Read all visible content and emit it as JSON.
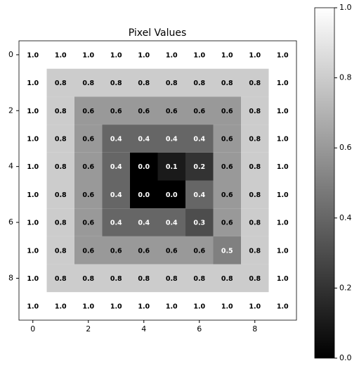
{
  "chart_data": {
    "type": "heatmap",
    "title": "Pixel Values",
    "colormap": "gray",
    "values": [
      [
        1,
        1,
        1,
        1,
        1,
        1,
        1,
        1,
        1,
        1
      ],
      [
        1,
        0.8,
        0.8,
        0.8,
        0.8,
        0.8,
        0.8,
        0.8,
        0.8,
        1
      ],
      [
        1,
        0.8,
        0.6,
        0.6,
        0.6,
        0.6,
        0.6,
        0.6,
        0.8,
        1
      ],
      [
        1,
        0.8,
        0.6,
        0.4,
        0.4,
        0.4,
        0.4,
        0.6,
        0.8,
        1
      ],
      [
        1,
        0.8,
        0.6,
        0.4,
        0,
        0.1,
        0.2,
        0.6,
        0.8,
        1
      ],
      [
        1,
        0.8,
        0.6,
        0.4,
        0,
        0,
        0.4,
        0.6,
        0.8,
        1
      ],
      [
        1,
        0.8,
        0.6,
        0.4,
        0.4,
        0.4,
        0.3,
        0.6,
        0.8,
        1
      ],
      [
        1,
        0.8,
        0.6,
        0.6,
        0.6,
        0.6,
        0.6,
        0.5,
        0.8,
        1
      ],
      [
        1,
        0.8,
        0.8,
        0.8,
        0.8,
        0.8,
        0.8,
        0.8,
        0.8,
        1
      ],
      [
        1,
        1,
        1,
        1,
        1,
        1,
        1,
        1,
        1,
        1
      ]
    ],
    "value_labels": [
      [
        "1.0",
        "1.0",
        "1.0",
        "1.0",
        "1.0",
        "1.0",
        "1.0",
        "1.0",
        "1.0",
        "1.0"
      ],
      [
        "1.0",
        "0.8",
        "0.8",
        "0.8",
        "0.8",
        "0.8",
        "0.8",
        "0.8",
        "0.8",
        "1.0"
      ],
      [
        "1.0",
        "0.8",
        "0.6",
        "0.6",
        "0.6",
        "0.6",
        "0.6",
        "0.6",
        "0.8",
        "1.0"
      ],
      [
        "1.0",
        "0.8",
        "0.6",
        "0.4",
        "0.4",
        "0.4",
        "0.4",
        "0.6",
        "0.8",
        "1.0"
      ],
      [
        "1.0",
        "0.8",
        "0.6",
        "0.4",
        "0.0",
        "0.1",
        "0.2",
        "0.6",
        "0.8",
        "1.0"
      ],
      [
        "1.0",
        "0.8",
        "0.6",
        "0.4",
        "0.0",
        "0.0",
        "0.4",
        "0.6",
        "0.8",
        "1.0"
      ],
      [
        "1.0",
        "0.8",
        "0.6",
        "0.4",
        "0.4",
        "0.4",
        "0.3",
        "0.6",
        "0.8",
        "1.0"
      ],
      [
        "1.0",
        "0.8",
        "0.6",
        "0.6",
        "0.6",
        "0.6",
        "0.6",
        "0.5",
        "0.8",
        "1.0"
      ],
      [
        "1.0",
        "0.8",
        "0.8",
        "0.8",
        "0.8",
        "0.8",
        "0.8",
        "0.8",
        "0.8",
        "1.0"
      ],
      [
        "1.0",
        "1.0",
        "1.0",
        "1.0",
        "1.0",
        "1.0",
        "1.0",
        "1.0",
        "1.0",
        "1.0"
      ]
    ],
    "xlim": [
      -0.5,
      9.5
    ],
    "ylim": [
      9.5,
      -0.5
    ],
    "xticks": [
      0,
      2,
      4,
      6,
      8
    ],
    "yticks": [
      0,
      2,
      4,
      6,
      8
    ],
    "clim": [
      0,
      1
    ],
    "cticks": [
      {
        "value": 0,
        "label": "0.0"
      },
      {
        "value": 0.2,
        "label": "0.2"
      },
      {
        "value": 0.4,
        "label": "0.4"
      },
      {
        "value": 0.6,
        "label": "0.6"
      },
      {
        "value": 0.8,
        "label": "0.8"
      },
      {
        "value": 1,
        "label": "1.0"
      }
    ]
  }
}
